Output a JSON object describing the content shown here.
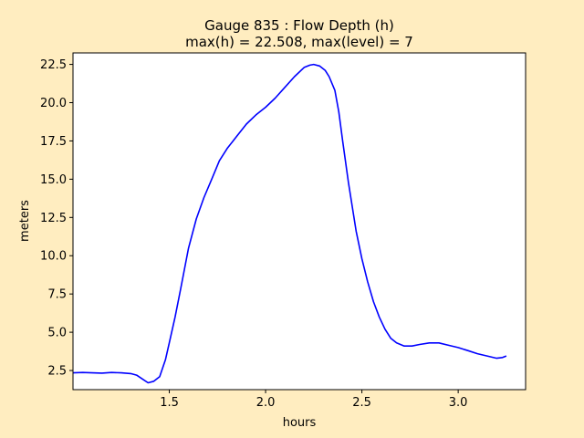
{
  "figure": {
    "background": "#FFEDC0"
  },
  "chart_data": {
    "type": "line",
    "title_line1": "Gauge 835 : Flow Depth (h)",
    "title_line2": "max(h) =  22.508,    max(level) = 7",
    "xlabel": "hours",
    "ylabel": "meters",
    "xlim": [
      1.0,
      3.35
    ],
    "ylim": [
      1.25,
      23.25
    ],
    "xticks": [
      1.5,
      2.0,
      2.5,
      3.0
    ],
    "xtick_labels": [
      "1.5",
      "2.0",
      "2.5",
      "3.0"
    ],
    "yticks": [
      2.5,
      5.0,
      7.5,
      10.0,
      12.5,
      15.0,
      17.5,
      20.0,
      22.5
    ],
    "ytick_labels": [
      "2.5",
      "5.0",
      "7.5",
      "10.0",
      "12.5",
      "15.0",
      "17.5",
      "20.0",
      "22.5"
    ],
    "grid": false,
    "series": [
      {
        "color": "#0000FF",
        "x": [
          1.0,
          1.05,
          1.1,
          1.15,
          1.2,
          1.25,
          1.3,
          1.33,
          1.36,
          1.39,
          1.42,
          1.45,
          1.48,
          1.5,
          1.53,
          1.56,
          1.6,
          1.64,
          1.68,
          1.72,
          1.76,
          1.8,
          1.85,
          1.9,
          1.95,
          2.0,
          2.05,
          2.1,
          2.15,
          2.2,
          2.23,
          2.25,
          2.28,
          2.31,
          2.33,
          2.36,
          2.38,
          2.4,
          2.43,
          2.47,
          2.5,
          2.53,
          2.56,
          2.59,
          2.62,
          2.65,
          2.68,
          2.72,
          2.76,
          2.8,
          2.85,
          2.9,
          2.95,
          3.0,
          3.05,
          3.1,
          3.15,
          3.2,
          3.23,
          3.25
        ],
        "y": [
          2.35,
          2.37,
          2.35,
          2.33,
          2.37,
          2.35,
          2.3,
          2.2,
          1.95,
          1.7,
          1.8,
          2.1,
          3.2,
          4.3,
          6.0,
          7.9,
          10.5,
          12.4,
          13.8,
          15.0,
          16.2,
          17.0,
          17.8,
          18.6,
          19.2,
          19.7,
          20.3,
          21.0,
          21.7,
          22.3,
          22.45,
          22.5,
          22.4,
          22.1,
          21.7,
          20.8,
          19.4,
          17.5,
          14.8,
          11.6,
          9.8,
          8.3,
          7.0,
          6.0,
          5.2,
          4.6,
          4.3,
          4.1,
          4.1,
          4.2,
          4.3,
          4.3,
          4.15,
          4.0,
          3.8,
          3.6,
          3.45,
          3.3,
          3.35,
          3.45
        ]
      }
    ]
  }
}
